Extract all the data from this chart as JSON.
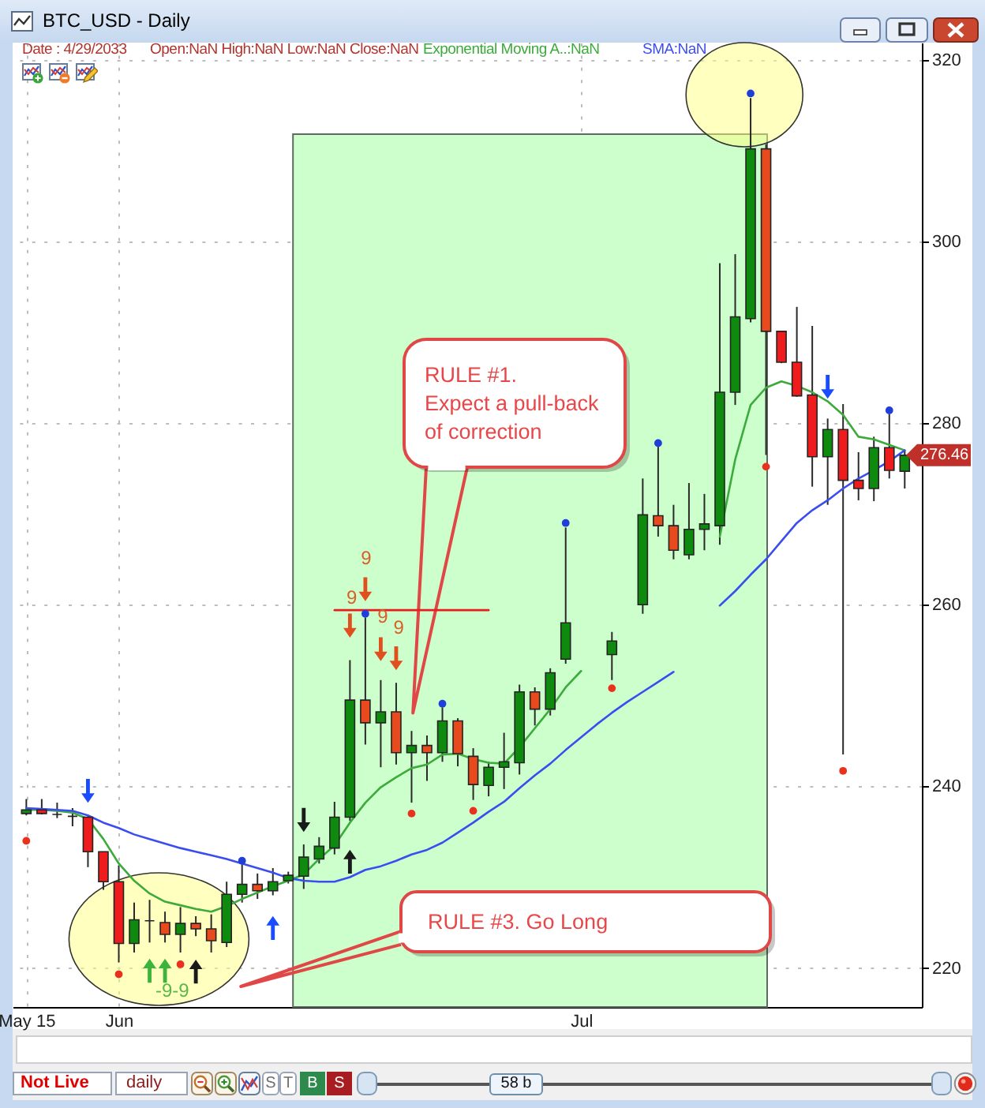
{
  "chart_data": {
    "type": "candlestick",
    "title": "BTC_USD - Daily",
    "subtitle": "Date : 4/29/2033",
    "categories": [
      "May 15",
      null,
      null,
      null,
      null,
      null,
      "Jun",
      null,
      null,
      null,
      null,
      null,
      null,
      null,
      null,
      null,
      null,
      null,
      null,
      null,
      null,
      null,
      null,
      null,
      null,
      null,
      null,
      null,
      null,
      null,
      null,
      null,
      null,
      null,
      null,
      null,
      "Jul",
      null,
      null,
      null,
      null,
      null,
      null,
      null,
      null,
      null,
      null,
      null,
      null,
      null,
      null,
      null,
      null,
      null,
      null,
      null,
      null,
      null
    ],
    "ohlc": [
      [
        237.0,
        238.6,
        236.8,
        237.4
      ],
      [
        237.4,
        238.6,
        236.9,
        237.0
      ],
      [
        236.9,
        238.2,
        236.5,
        236.9
      ],
      [
        236.7,
        237.6,
        235.6,
        236.7
      ],
      [
        236.6,
        236.7,
        231.1,
        232.8
      ],
      [
        232.8,
        232.8,
        228.6,
        229.5
      ],
      [
        229.5,
        231.3,
        220.6,
        222.7
      ],
      [
        222.7,
        227.2,
        221.7,
        225.3
      ],
      [
        225.2,
        227.5,
        222.8,
        225.2
      ],
      [
        225.0,
        226.2,
        222.8,
        223.7
      ],
      [
        223.7,
        226.7,
        221.7,
        224.9
      ],
      [
        224.9,
        225.7,
        223.5,
        224.3
      ],
      [
        224.3,
        225.9,
        221.7,
        223.0
      ],
      [
        222.8,
        229.5,
        222.3,
        228.1
      ],
      [
        228.1,
        231.4,
        227.2,
        229.2
      ],
      [
        229.2,
        230.4,
        227.6,
        228.5
      ],
      [
        228.5,
        231.0,
        228.0,
        229.5
      ],
      [
        229.6,
        230.6,
        229.3,
        230.2
      ],
      [
        230.1,
        233.6,
        228.7,
        232.2
      ],
      [
        232.0,
        234.4,
        231.5,
        233.4
      ],
      [
        233.2,
        238.3,
        232.5,
        236.6
      ],
      [
        236.6,
        253.9,
        236.2,
        249.5
      ],
      [
        249.5,
        258.6,
        244.6,
        247.0
      ],
      [
        247.0,
        251.7,
        242.1,
        248.2
      ],
      [
        248.2,
        251.4,
        242.4,
        243.7
      ],
      [
        243.7,
        246.1,
        238.2,
        244.5
      ],
      [
        244.5,
        245.6,
        240.6,
        243.7
      ],
      [
        243.7,
        248.7,
        242.7,
        247.2
      ],
      [
        247.2,
        247.5,
        242.2,
        243.6
      ],
      [
        243.3,
        244.2,
        238.5,
        240.2
      ],
      [
        240.1,
        242.7,
        238.9,
        242.1
      ],
      [
        242.1,
        245.9,
        239.7,
        242.7
      ],
      [
        242.6,
        251.2,
        241.3,
        250.4
      ],
      [
        250.4,
        250.9,
        246.7,
        248.5
      ],
      [
        248.5,
        253.0,
        247.8,
        252.5
      ],
      [
        254.0,
        268.5,
        253.5,
        258.0
      ],
      null,
      null,
      [
        254.5,
        257.0,
        251.7,
        256.0
      ],
      null,
      [
        260.0,
        273.9,
        259.0,
        269.9
      ],
      [
        269.8,
        277.4,
        267.5,
        268.7
      ],
      [
        268.7,
        271.0,
        265.0,
        266.0
      ],
      [
        265.5,
        273.4,
        265.0,
        268.3
      ],
      [
        268.3,
        272.2,
        266.0,
        268.9
      ],
      [
        268.7,
        297.6,
        266.6,
        283.4
      ],
      [
        283.4,
        298.6,
        282.0,
        291.7
      ],
      [
        291.5,
        315.8,
        291.1,
        310.2
      ],
      [
        310.2,
        310.7,
        276.5,
        290.1
      ],
      [
        290.1,
        290.1,
        286.6,
        286.7
      ],
      [
        286.7,
        292.8,
        282.9,
        283.0
      ],
      [
        283.1,
        290.7,
        273.0,
        276.3
      ],
      [
        276.3,
        280.5,
        271.0,
        279.3
      ],
      [
        279.3,
        282.1,
        243.5,
        273.7
      ],
      [
        273.7,
        276.8,
        271.5,
        272.8
      ],
      [
        272.8,
        278.5,
        271.4,
        277.3
      ],
      [
        277.3,
        281.0,
        273.9,
        274.8
      ],
      [
        274.7,
        277.0,
        272.8,
        276.46
      ]
    ],
    "colors": [
      "#0e8a0e",
      "#ee1c1c",
      "#2a2a2a",
      "#2a2a2a",
      "#ee1c1c",
      "#ee1c1c",
      "#ee1c1c",
      "#0e8a0e",
      "#2a2a2a",
      "#e84a1e",
      "#0e8a0e",
      "#e84a1e",
      "#e84a1e",
      "#0e8a0e",
      "#0e8a0e",
      "#e84a1e",
      "#0e8a0e",
      "#0e8a0e",
      "#0e8a0e",
      "#0e8a0e",
      "#0e8a0e",
      "#0e8a0e",
      "#e84a1e",
      "#0e8a0e",
      "#e84a1e",
      "#0e8a0e",
      "#e84a1e",
      "#0e8a0e",
      "#e84a1e",
      "#e84a1e",
      "#0e8a0e",
      "#0e8a0e",
      "#0e8a0e",
      "#e84a1e",
      "#0e8a0e",
      "#0e8a0e",
      null,
      null,
      "#0e8a0e",
      null,
      "#0e8a0e",
      "#e84a1e",
      "#e84a1e",
      "#0e8a0e",
      "#0e8a0e",
      "#0e8a0e",
      "#0e8a0e",
      "#0e8a0e",
      "#e84a1e",
      "#ee1c1c",
      "#ee1c1c",
      "#ee1c1c",
      "#0e8a0e",
      "#ee1c1c",
      "#ee1c1c",
      "#0e8a0e",
      "#ee1c1c",
      "#0e8a0e"
    ],
    "series": [
      {
        "name": "Exponential Moving A..:NaN",
        "type": "line",
        "color": "#3cab3c",
        "values": [
          237.4,
          237.4,
          237.3,
          237.1,
          236.4,
          234.2,
          231.5,
          229.6,
          228.2,
          227.3,
          226.9,
          226.5,
          226.2,
          226.8,
          227.6,
          228.3,
          229.0,
          229.6,
          230.3,
          232.0,
          233.5,
          236.0,
          238.2,
          239.9,
          241.0,
          242.0,
          242.4,
          243.5,
          243.6,
          243.0,
          242.6,
          242.5,
          244.3,
          246.4,
          248.5,
          250.9,
          252.7,
          null,
          null,
          null,
          null,
          null,
          null,
          null,
          null,
          267.5,
          276.0,
          282.0,
          283.9,
          284.6,
          284.1,
          283.4,
          282.4,
          280.9,
          278.5,
          278.2,
          277.6,
          277.0
        ]
      },
      {
        "name": "SMA:NaN",
        "type": "line",
        "color": "#3a4ef0",
        "values": [
          237.6,
          237.5,
          237.4,
          237.3,
          236.8,
          236.0,
          235.4,
          234.7,
          234.2,
          233.7,
          233.2,
          232.8,
          232.4,
          232.0,
          231.5,
          231.0,
          230.5,
          229.9,
          229.6,
          229.5,
          229.5,
          230.0,
          230.8,
          231.2,
          231.8,
          232.5,
          233.0,
          233.8,
          234.9,
          236.0,
          237.2,
          238.3,
          239.8,
          241.2,
          242.5,
          244.0,
          245.4,
          246.8,
          248.1,
          249.3,
          250.4,
          251.5,
          252.6,
          null,
          null,
          259.9,
          261.5,
          263.3,
          265.0,
          267.0,
          269.0,
          270.4,
          271.5,
          272.8,
          273.9,
          274.8,
          275.8,
          277.0
        ]
      },
      {
        "type": "line",
        "color": "#e81e1e",
        "values": [
          null,
          null,
          null,
          null,
          null,
          null,
          null,
          null,
          null,
          null,
          null,
          null,
          null,
          null,
          null,
          null,
          null,
          null,
          null,
          null,
          259.4,
          259.4,
          259.4,
          259.4,
          259.4,
          259.4,
          259.4,
          259.4,
          259.4,
          259.4,
          259.4,
          null,
          null,
          null,
          null,
          null,
          null,
          null,
          null,
          null,
          null,
          null,
          null,
          null,
          null,
          null,
          null,
          null,
          null,
          null,
          null,
          null,
          null,
          null,
          null,
          null,
          null,
          null
        ]
      },
      {
        "type": "scatter",
        "marker": "circle",
        "color": "#e8321e",
        "values": [
          234.0,
          null,
          null,
          null,
          null,
          null,
          219.3,
          null,
          null,
          null,
          220.4,
          null,
          null,
          null,
          null,
          null,
          null,
          null,
          null,
          null,
          null,
          null,
          null,
          null,
          null,
          237.0,
          null,
          null,
          null,
          237.3,
          null,
          null,
          null,
          null,
          null,
          null,
          null,
          null,
          250.8,
          null,
          null,
          null,
          null,
          null,
          null,
          null,
          null,
          null,
          275.2,
          null,
          null,
          null,
          null,
          241.7,
          null,
          null,
          null,
          null
        ]
      },
      {
        "type": "scatter",
        "marker": "circle",
        "color": "#1f3fd8",
        "values": [
          null,
          null,
          null,
          null,
          null,
          null,
          null,
          null,
          null,
          null,
          null,
          null,
          null,
          null,
          231.8,
          null,
          null,
          null,
          null,
          null,
          null,
          null,
          259.0,
          null,
          null,
          null,
          null,
          249.1,
          null,
          null,
          null,
          null,
          null,
          null,
          null,
          269.0,
          null,
          null,
          null,
          null,
          null,
          277.8,
          null,
          null,
          null,
          null,
          null,
          316.3,
          null,
          null,
          null,
          null,
          null,
          null,
          null,
          null,
          281.4,
          null
        ]
      },
      {
        "type": "scatter",
        "marker": "triangle",
        "color": "#1a4cff",
        "values": [
          null,
          null,
          null,
          null,
          239.5,
          null,
          null,
          null,
          null,
          null,
          null,
          null,
          null,
          null,
          null,
          null,
          224.4,
          null,
          null,
          null,
          null,
          null,
          null,
          null,
          null,
          null,
          null,
          null,
          null,
          null,
          null,
          null,
          null,
          null,
          null,
          null,
          null,
          null,
          null,
          null,
          null,
          null,
          null,
          null,
          null,
          null,
          null,
          null,
          null,
          null,
          null,
          null,
          284.0,
          null,
          null,
          null,
          null,
          null
        ]
      },
      {
        "type": "scatter",
        "marker": "triangle",
        "color": "#1a1a1a",
        "values": [
          null,
          null,
          null,
          null,
          null,
          null,
          null,
          null,
          null,
          null,
          null,
          219.6,
          null,
          null,
          null,
          null,
          null,
          null,
          236.3,
          null,
          null,
          231.7,
          null,
          null,
          null,
          null,
          null,
          null,
          null,
          null,
          null,
          null,
          null,
          null,
          null,
          null,
          null,
          null,
          null,
          null,
          null,
          null,
          null,
          null,
          null,
          null,
          null,
          null,
          null,
          null,
          null,
          null,
          null,
          null,
          null,
          null,
          null,
          null
        ]
      },
      {
        "type": "scatter",
        "marker": "triangle",
        "color": "#3cb43c",
        "values": [
          null,
          null,
          null,
          null,
          null,
          null,
          null,
          null,
          219.7,
          219.7,
          null,
          null,
          null,
          null,
          null,
          null,
          null,
          null,
          null,
          null,
          null,
          null,
          null,
          null,
          null,
          null,
          null,
          null,
          null,
          null,
          null,
          null,
          null,
          null,
          null,
          null,
          null,
          null,
          null,
          null,
          null,
          null,
          null,
          null,
          null,
          null,
          null,
          null,
          null,
          null,
          null,
          null,
          null,
          null,
          null,
          null,
          null,
          null
        ]
      },
      {
        "type": "scatter",
        "marker": "triangle",
        "color": "#e0501e",
        "values": [
          null,
          null,
          null,
          null,
          null,
          null,
          null,
          null,
          null,
          null,
          null,
          null,
          null,
          null,
          null,
          null,
          null,
          null,
          null,
          null,
          null,
          257.7,
          261.7,
          255.1,
          254.1,
          null,
          null,
          null,
          null,
          null,
          null,
          null,
          null,
          null,
          null,
          null,
          null,
          null,
          null,
          null,
          null,
          null,
          null,
          null,
          null,
          null,
          null,
          null,
          null,
          null,
          null,
          null,
          null,
          null,
          null,
          null,
          null,
          null
        ]
      }
    ],
    "ylim": [
      215.7,
      321.9
    ],
    "yticks": [
      220,
      240,
      260,
      280,
      300,
      320
    ],
    "grid": true,
    "legend": "top",
    "annotations": [
      "Open:NaN High:NaN Low:NaN Close:NaN",
      "9",
      "9",
      "9",
      "9",
      "-9-9",
      "RULE #1.\nExpect a pull-back\nof correction",
      "RULE #3. Go Long",
      "276.46",
      "Not Live",
      "daily",
      "S",
      "T",
      "B",
      "S",
      "58 b"
    ]
  }
}
